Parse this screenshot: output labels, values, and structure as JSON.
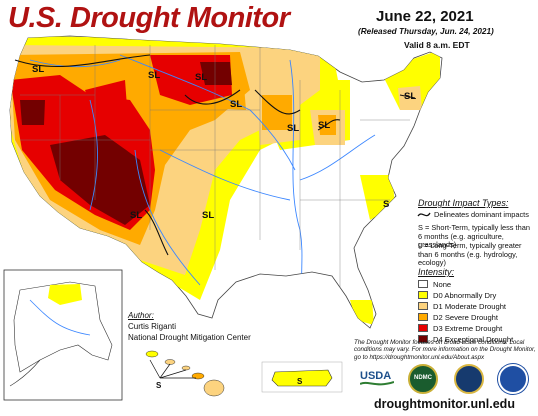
{
  "header": {
    "title": "U.S. Drought Monitor",
    "date": "June 22, 2021",
    "released": "(Released Thursday, Jun. 24, 2021)",
    "valid": "Valid 8 a.m. EDT"
  },
  "map_labels": {
    "sl": "SL",
    "s": "S",
    "l": "L"
  },
  "impact": {
    "title": "Drought Impact Types:",
    "line": "Delineates dominant impacts",
    "s_text": "S = Short-Term, typically less than 6 months (e.g. agriculture, grasslands)",
    "l_text": "L = Long-Term, typically greater than 6 months (e.g. hydrology, ecology)"
  },
  "intensity": {
    "title": "Intensity:",
    "items": [
      {
        "label": "None",
        "color": "#ffffff"
      },
      {
        "label": "D0 Abnormally Dry",
        "color": "#ffff00"
      },
      {
        "label": "D1 Moderate Drought",
        "color": "#fcd37f"
      },
      {
        "label": "D2 Severe Drought",
        "color": "#ffaa00"
      },
      {
        "label": "D3 Extreme Drought",
        "color": "#e60000"
      },
      {
        "label": "D4 Exceptional Drought",
        "color": "#730000"
      }
    ]
  },
  "author": {
    "title": "Author:",
    "name": "Curtis Riganti",
    "org": "National Drought Mitigation Center"
  },
  "footer": {
    "disclaimer": "The Drought Monitor focuses on broad-scale conditions. Local conditions may vary. For more information on the Drought Monitor, go to https://droughtmonitor.unl.edu/About.aspx",
    "website": "droughtmonitor.unl.edu"
  },
  "logos": {
    "usda": "USDA",
    "ndmc": "NDMC"
  }
}
